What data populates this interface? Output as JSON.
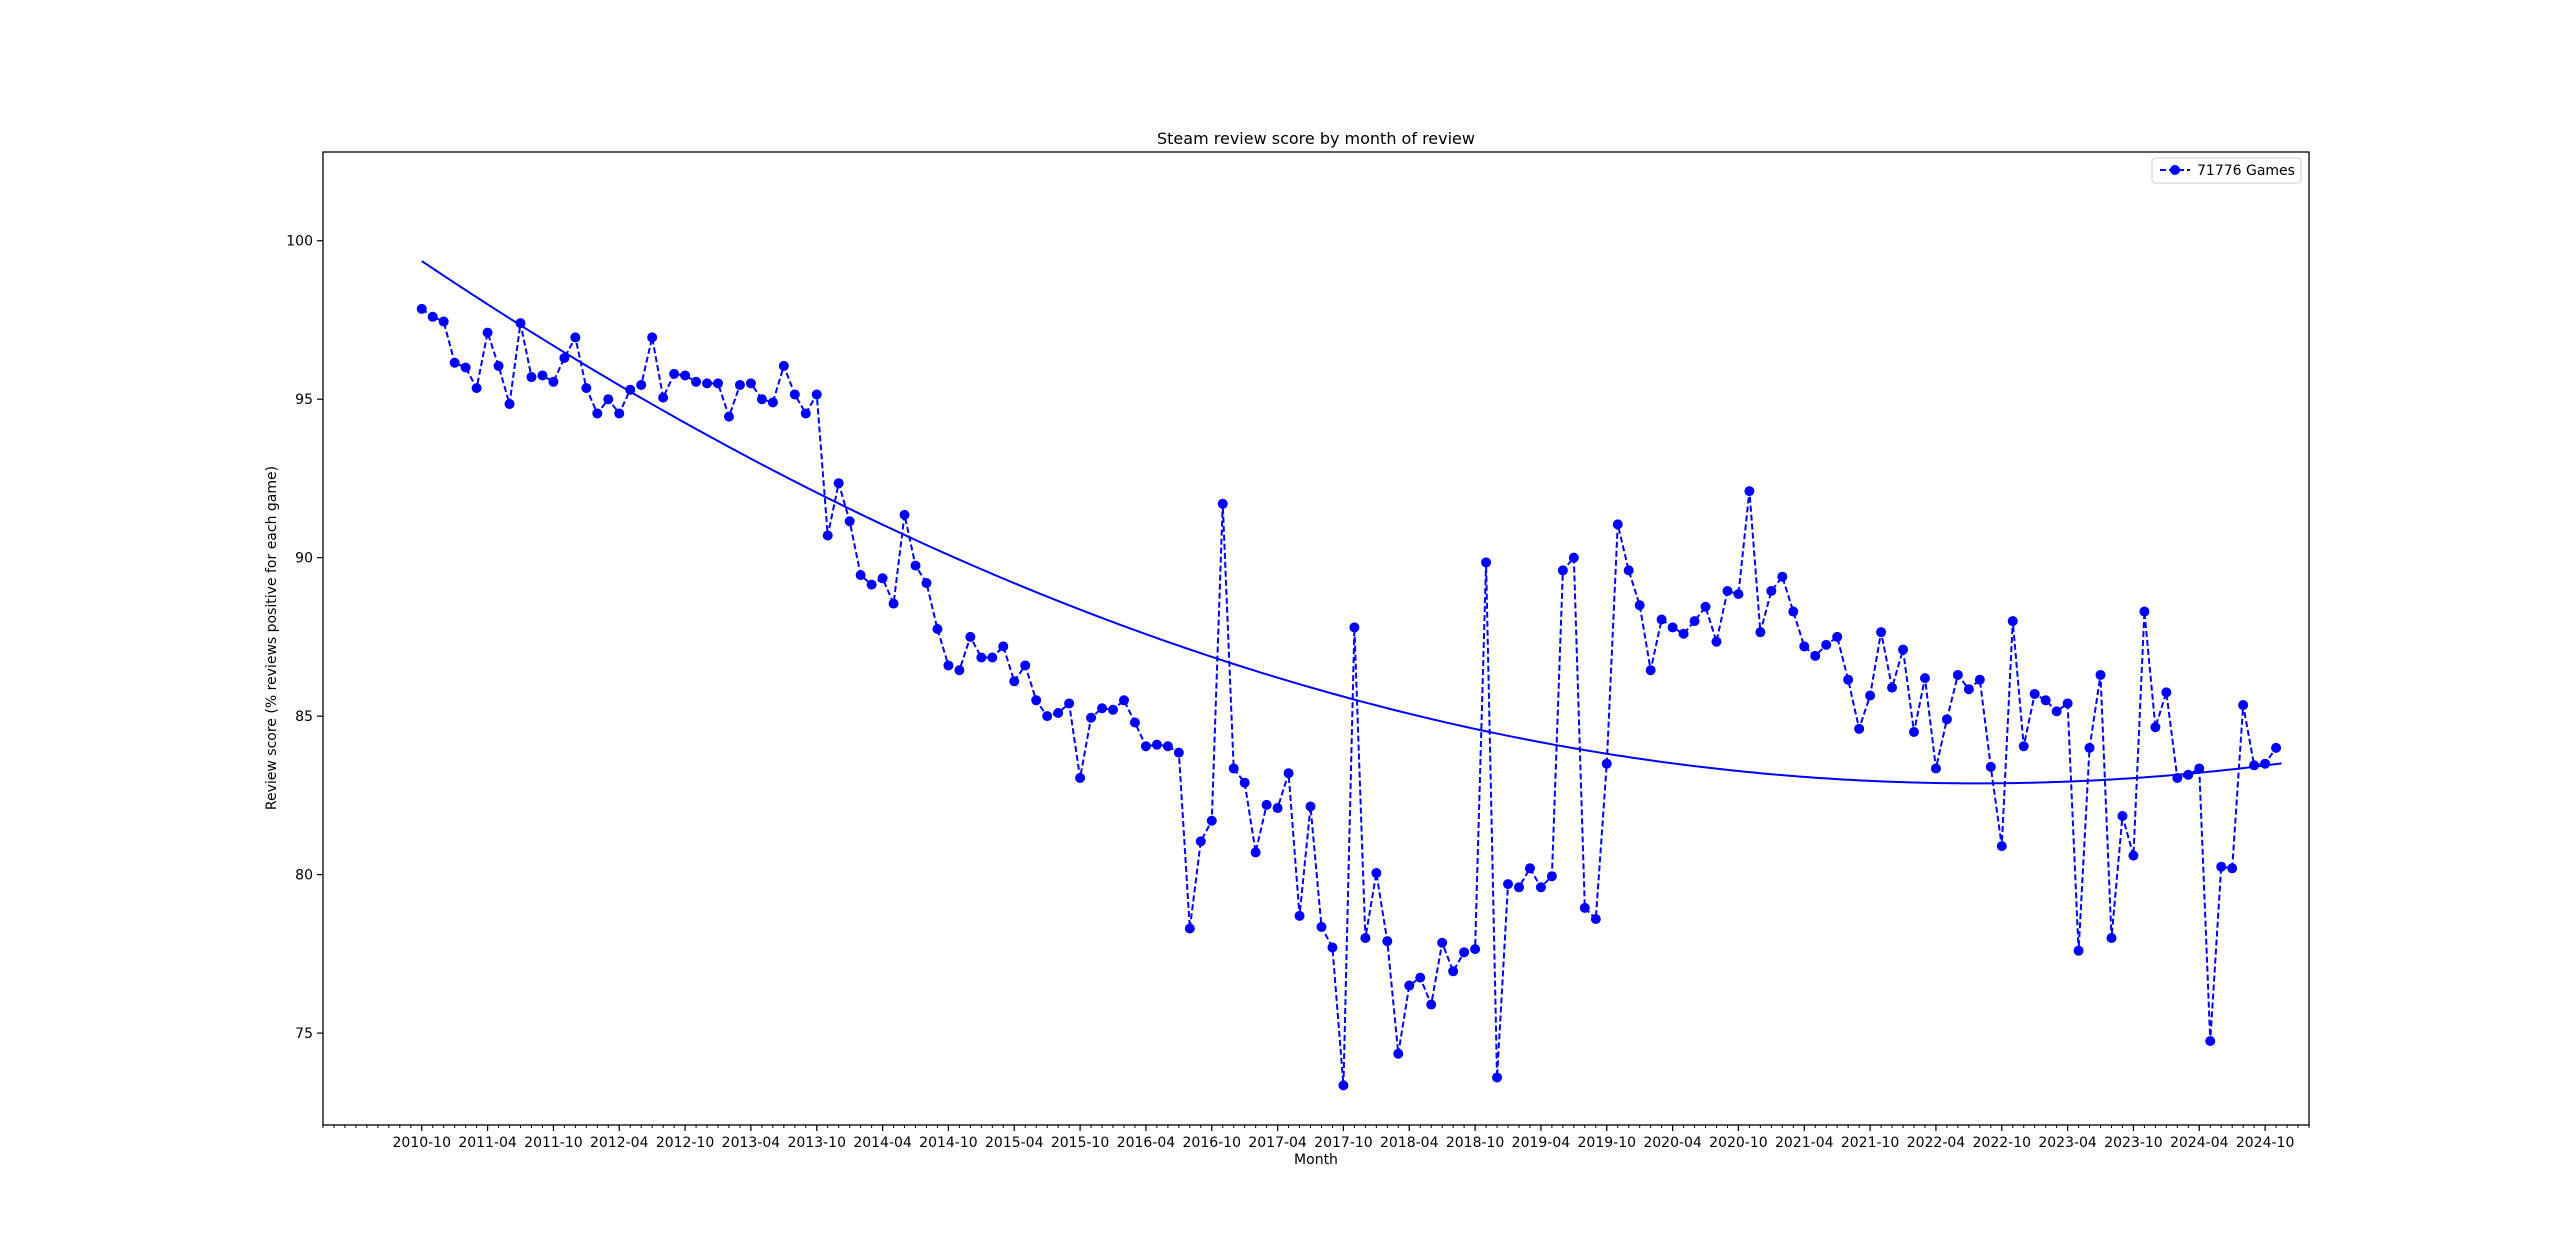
{
  "chart_data": {
    "type": "line",
    "title": "Steam review score by month of review",
    "xlabel": "Month",
    "ylabel": "Review score (% reviews positive for each game)",
    "x_start": "2010-10",
    "xlim": [
      "2010-01",
      "2025-02"
    ],
    "ylim": [
      72.1,
      102.8
    ],
    "yticks": [
      75,
      80,
      85,
      90,
      95,
      100
    ],
    "xticks": [
      "2010-10",
      "2011-04",
      "2011-10",
      "2012-04",
      "2012-10",
      "2013-04",
      "2013-10",
      "2014-04",
      "2014-10",
      "2015-04",
      "2015-10",
      "2016-04",
      "2016-10",
      "2017-04",
      "2017-10",
      "2018-04",
      "2018-10",
      "2019-04",
      "2019-10",
      "2020-04",
      "2020-10",
      "2021-04",
      "2021-10",
      "2022-04",
      "2022-10",
      "2023-04",
      "2023-10",
      "2024-04",
      "2024-10"
    ],
    "legend_position": "top-right",
    "series": [
      {
        "name": "71776 Games",
        "color": "#0000ff",
        "style": "dashed-line-with-dots",
        "values": [
          97.85,
          97.6,
          97.45,
          96.15,
          96.0,
          95.35,
          97.1,
          96.05,
          94.85,
          97.4,
          95.7,
          95.75,
          95.55,
          96.3,
          96.95,
          95.35,
          94.55,
          95.0,
          94.55,
          95.3,
          95.45,
          96.95,
          95.05,
          95.8,
          95.75,
          95.55,
          95.5,
          95.5,
          94.45,
          95.45,
          95.5,
          95.0,
          94.9,
          96.05,
          95.15,
          94.55,
          95.15,
          90.7,
          92.35,
          91.15,
          89.45,
          89.15,
          89.35,
          88.55,
          91.35,
          89.75,
          89.2,
          87.75,
          86.6,
          86.45,
          87.5,
          86.85,
          86.85,
          87.2,
          86.1,
          86.6,
          85.5,
          85.0,
          85.1,
          85.4,
          83.05,
          84.95,
          85.25,
          85.2,
          85.5,
          84.8,
          84.05,
          84.1,
          84.05,
          83.85,
          78.3,
          81.05,
          81.7,
          91.7,
          83.35,
          82.9,
          80.7,
          82.2,
          82.1,
          83.2,
          78.7,
          82.15,
          78.35,
          77.7,
          73.35,
          87.8,
          78.0,
          80.05,
          77.9,
          74.35,
          76.5,
          76.75,
          75.9,
          77.85,
          76.95,
          77.55,
          77.65,
          89.85,
          73.6,
          79.7,
          79.6,
          80.2,
          79.6,
          79.95,
          89.6,
          90.0,
          78.95,
          78.6,
          83.5,
          91.05,
          89.6,
          88.5,
          86.45,
          88.05,
          87.8,
          87.6,
          88.0,
          88.45,
          87.35,
          88.95,
          88.85,
          92.1,
          87.65,
          88.95,
          89.4,
          88.3,
          87.2,
          86.9,
          87.25,
          87.5,
          86.15,
          84.6,
          85.65,
          87.65,
          85.9,
          87.1,
          84.5,
          86.2,
          83.35,
          84.9,
          86.3,
          85.85,
          86.15,
          83.4,
          80.9,
          88.0,
          84.05,
          85.7,
          85.5,
          85.15,
          85.4,
          77.6,
          84.0,
          86.3,
          78.0,
          81.85,
          80.6,
          88.3,
          84.65,
          85.75,
          83.05,
          83.15,
          83.35,
          74.75,
          80.25,
          80.2,
          85.35,
          83.45,
          83.5,
          84.0
        ]
      },
      {
        "name": "",
        "color": "#0000ff",
        "style": "solid-trend",
        "quadratic": {
          "a": 0.00082,
          "b": -0.2325,
          "c": 99.36,
          "x_unit": "months since 2010-10"
        }
      }
    ]
  }
}
